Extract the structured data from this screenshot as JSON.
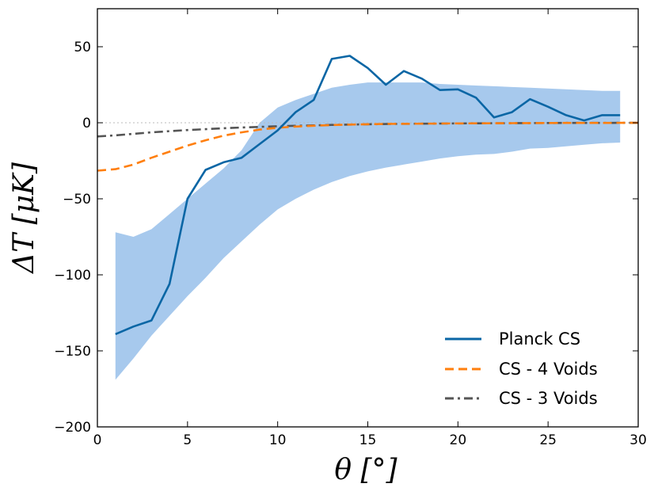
{
  "chart_data": {
    "type": "line",
    "title": "",
    "xlabel": "θ [°]",
    "ylabel": "ΔT [μK]",
    "xlim": [
      0,
      30
    ],
    "ylim": [
      -200,
      75
    ],
    "xticks": [
      0,
      5,
      10,
      15,
      20,
      25,
      30
    ],
    "yticks": [
      -200,
      -150,
      -100,
      -50,
      0,
      50
    ],
    "xtick_labels": [
      "0",
      "5",
      "10",
      "15",
      "20",
      "25",
      "30"
    ],
    "ytick_labels": [
      "−200",
      "−150",
      "−100",
      "−50",
      "0",
      "50"
    ],
    "grid": false,
    "legend_position": "lower-right",
    "band": {
      "name": "confidence region",
      "color": "#a7c9ed",
      "x": [
        1,
        2,
        3,
        4,
        5,
        6,
        7,
        8,
        9,
        10,
        11,
        12,
        13,
        14,
        15,
        16,
        17,
        18,
        19,
        20,
        21,
        22,
        23,
        24,
        25,
        26,
        27,
        28,
        29
      ],
      "upper": [
        -72,
        -75,
        -70,
        -60,
        -50,
        -40,
        -30,
        -18,
        0,
        10,
        15,
        19,
        23,
        25,
        26.5,
        26.5,
        26.5,
        26.5,
        25.5,
        25,
        24.5,
        24,
        23.5,
        23,
        22.5,
        22,
        21.5,
        21,
        21
      ],
      "lower": [
        -169,
        -155,
        -140,
        -127,
        -114,
        -102,
        -89,
        -78,
        -67,
        -57,
        -50,
        -44,
        -39,
        -35,
        -32,
        -29.5,
        -27.5,
        -25.5,
        -23.5,
        -22,
        -21,
        -20.5,
        -19,
        -17,
        -16.5,
        -15.5,
        -14.5,
        -13.5,
        -13
      ]
    },
    "series": [
      {
        "name": "Planck CS",
        "style": "solid",
        "color": "#0a66a5",
        "x": [
          1,
          2,
          3,
          4,
          5,
          6,
          7,
          8,
          9,
          10,
          11,
          12,
          13,
          14,
          15,
          16,
          17,
          18,
          19,
          20,
          21,
          22,
          23,
          24,
          25,
          26,
          27,
          28,
          29
        ],
        "values": [
          -139,
          -134,
          -130,
          -106,
          -50,
          -31,
          -26,
          -23,
          -14,
          -5,
          7,
          15,
          42,
          44,
          36,
          25,
          34,
          29,
          21.5,
          22,
          16.5,
          3.5,
          7,
          15.5,
          10.5,
          5,
          1.5,
          5,
          5
        ]
      },
      {
        "name": "CS - 4 Voids",
        "style": "dashed",
        "color": "#ff7f0e",
        "x": [
          0,
          1,
          2,
          3,
          4,
          5,
          6,
          7,
          8,
          9,
          10,
          11,
          12,
          13,
          14,
          15,
          16,
          17,
          18,
          19,
          20,
          21,
          22,
          23,
          24,
          25,
          26,
          27,
          28,
          29,
          30
        ],
        "values": [
          -31.5,
          -30.5,
          -27.5,
          -23,
          -19,
          -15,
          -11.5,
          -8.5,
          -6.3,
          -4.5,
          -3.3,
          -2.5,
          -2,
          -1.5,
          -1.2,
          -1,
          -0.8,
          -0.7,
          -0.6,
          -0.5,
          -0.4,
          -0.35,
          -0.3,
          -0.25,
          -0.2,
          -0.15,
          -0.12,
          -0.1,
          -0.08,
          -0.05,
          -0.03
        ]
      },
      {
        "name": "CS - 3 Voids",
        "style": "dashdot",
        "color": "#555555",
        "x": [
          0,
          1,
          2,
          3,
          4,
          5,
          6,
          7,
          8,
          9,
          10,
          11,
          12,
          13,
          14,
          15,
          16,
          17,
          18,
          19,
          20,
          21,
          22,
          23,
          24,
          25,
          26,
          27,
          28,
          29,
          30
        ],
        "values": [
          -9,
          -8.3,
          -7.3,
          -6.3,
          -5.5,
          -4.8,
          -4.2,
          -3.6,
          -3.1,
          -2.7,
          -2.3,
          -2,
          -1.7,
          -1.4,
          -1.2,
          -1,
          -0.85,
          -0.7,
          -0.6,
          -0.5,
          -0.4,
          -0.35,
          -0.3,
          -0.25,
          -0.2,
          -0.15,
          -0.12,
          -0.1,
          -0.08,
          -0.05,
          -0.03
        ]
      }
    ],
    "zero_line": {
      "y": 0,
      "style": "dotted",
      "color": "#bbbbbb"
    }
  }
}
